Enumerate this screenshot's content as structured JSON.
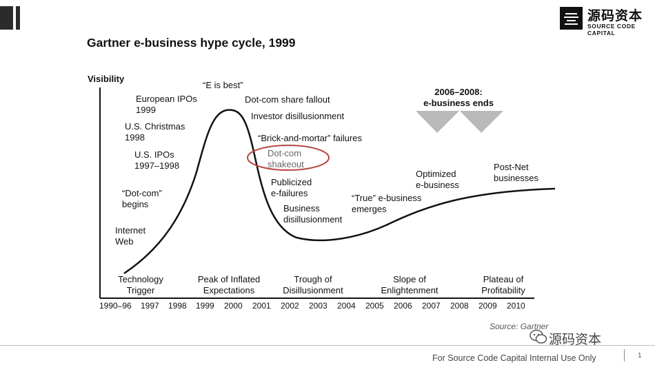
{
  "brand": {
    "cn": "源码资本",
    "en": "SOURCE CODE CAPITAL"
  },
  "title": "Gartner e-business hype cycle, 1999",
  "y_axis_label": "Visibility",
  "callout": {
    "ends_line1": "2006–2008:",
    "ends_line2": "e-business ends"
  },
  "events": [
    {
      "id": "internet-web",
      "l1": "Internet",
      "l2": "Web"
    },
    {
      "id": "dotcom-begins",
      "l1": "“Dot-com”",
      "l2": "begins"
    },
    {
      "id": "us-ipos",
      "l1": "U.S. IPOs",
      "l2": "1997–1998"
    },
    {
      "id": "us-christmas",
      "l1": "U.S. Christmas",
      "l2": "1998"
    },
    {
      "id": "european-ipos",
      "l1": "European IPOs",
      "l2": "1999"
    },
    {
      "id": "e-is-best",
      "l1": "“E is best”",
      "l2": ""
    },
    {
      "id": "dotcom-fallout",
      "l1": "Dot-com share fallout",
      "l2": ""
    },
    {
      "id": "investor-disillusionment",
      "l1": "Investor disillusionment",
      "l2": ""
    },
    {
      "id": "brick-mortar",
      "l1": "“Brick-and-mortar” failures",
      "l2": ""
    },
    {
      "id": "dotcom-shakeout",
      "l1": "Dot-com",
      "l2": "shakeout"
    },
    {
      "id": "publicized-failures",
      "l1": "Publicized",
      "l2": "e-failures"
    },
    {
      "id": "business-disillusionment",
      "l1": "Business",
      "l2": "disillusionment"
    },
    {
      "id": "true-ebusiness",
      "l1": "“True” e-business",
      "l2": "emerges"
    },
    {
      "id": "optimized",
      "l1": "Optimized",
      "l2": "e-business"
    },
    {
      "id": "post-net",
      "l1": "Post-Net",
      "l2": "businesses"
    }
  ],
  "phases": [
    {
      "l1": "Technology",
      "l2": "Trigger"
    },
    {
      "l1": "Peak of Inflated",
      "l2": "Expectations"
    },
    {
      "l1": "Trough of",
      "l2": "Disillusionment"
    },
    {
      "l1": "Slope of",
      "l2": "Enlightenment"
    },
    {
      "l1": "Plateau of",
      "l2": "Profitability"
    }
  ],
  "years": [
    "1990–96",
    "1997",
    "1998",
    "1999",
    "2000",
    "2001",
    "2002",
    "2003",
    "2004",
    "2005",
    "2006",
    "2007",
    "2008",
    "2009",
    "2010"
  ],
  "source": "Source: Gartner",
  "watermark": "源码资本",
  "footer": "For Source Code Capital Internal Use Only",
  "page_number": "1",
  "colors": {
    "curve": "#111111",
    "shakeout_ellipse": "#b5473e",
    "triangles": "#b9b9b9",
    "corner_bar": "#2b2b2b"
  }
}
